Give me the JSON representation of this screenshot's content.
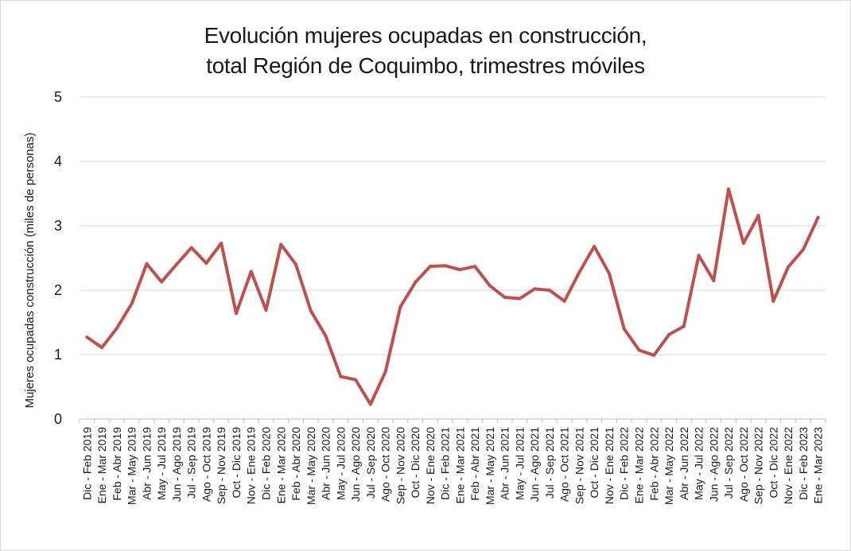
{
  "chart_data": {
    "type": "line",
    "title_lines": [
      "Evolución mujeres ocupadas en construcción,",
      "total Región de Coquimbo, trimestres móviles"
    ],
    "xlabel": "",
    "ylabel": "Mujeres ocupadas construcción (miles de personas)",
    "ylim": [
      0,
      5
    ],
    "yticks": [
      0,
      1,
      2,
      3,
      4,
      5
    ],
    "grid": true,
    "legend": "none",
    "categories": [
      "Dic - Feb 2019",
      "Ene - Mar 2019",
      "Feb - Abr 2019",
      "Mar - May 2019",
      "Abr - Jun 2019",
      "May - Jul 2019",
      "Jun - Ago 2019",
      "Jul - Sep 2019",
      "Ago - Oct 2019",
      "Sep - Nov 2019",
      "Oct - Dic 2019",
      "Nov - Ene 2019",
      "Dic - Feb 2020",
      "Ene - Mar 2020",
      "Feb - Abr 2020",
      "Mar - May 2020",
      "Abr - Jun 2020",
      "May - Jul 2020",
      "Jun - Ago 2020",
      "Jul - Sep 2020",
      "Ago - Oct 2020",
      "Sep - Nov 2020",
      "Oct - Dic 2020",
      "Nov - Ene 2020",
      "Dic - Feb 2021",
      "Ene - Mar 2021",
      "Feb - Abr 2021",
      "Mar - May 2021",
      "Abr - Jun 2021",
      "May - Jul 2021",
      "Jun - Ago 2021",
      "Jul - Sep 2021",
      "Ago - Oct 2021",
      "Sep - Nov 2021",
      "Oct - Dic 2021",
      "Nov - Ene 2021",
      "Dic - Feb 2022",
      "Ene - Mar 2022",
      "Feb - Abr 2022",
      "Mar - May 2022",
      "Abr - Jun 2022",
      "May - Jul 2022",
      "Jun - Ago 2022",
      "Jul - Sep 2022",
      "Ago - Oct 2022",
      "Sep - Nov 2022",
      "Oct - Dic 2022",
      "Nov - Ene 2022",
      "Dic - Feb 2023",
      "Ene - Mar 2023"
    ],
    "series": [
      {
        "name": "Mujeres ocupadas construcción",
        "color": "#c0504d",
        "values": [
          1.27,
          1.11,
          1.41,
          1.79,
          2.41,
          2.13,
          2.4,
          2.66,
          2.42,
          2.73,
          1.64,
          2.29,
          1.69,
          2.71,
          2.4,
          1.68,
          1.29,
          0.66,
          0.61,
          0.23,
          0.73,
          1.74,
          2.12,
          2.37,
          2.38,
          2.32,
          2.37,
          2.07,
          1.89,
          1.87,
          2.02,
          2.0,
          1.83,
          2.28,
          2.68,
          2.26,
          1.4,
          1.07,
          0.99,
          1.31,
          1.44,
          2.54,
          2.15,
          3.57,
          2.73,
          3.16,
          1.83,
          2.36,
          2.63,
          3.13
        ]
      }
    ]
  }
}
